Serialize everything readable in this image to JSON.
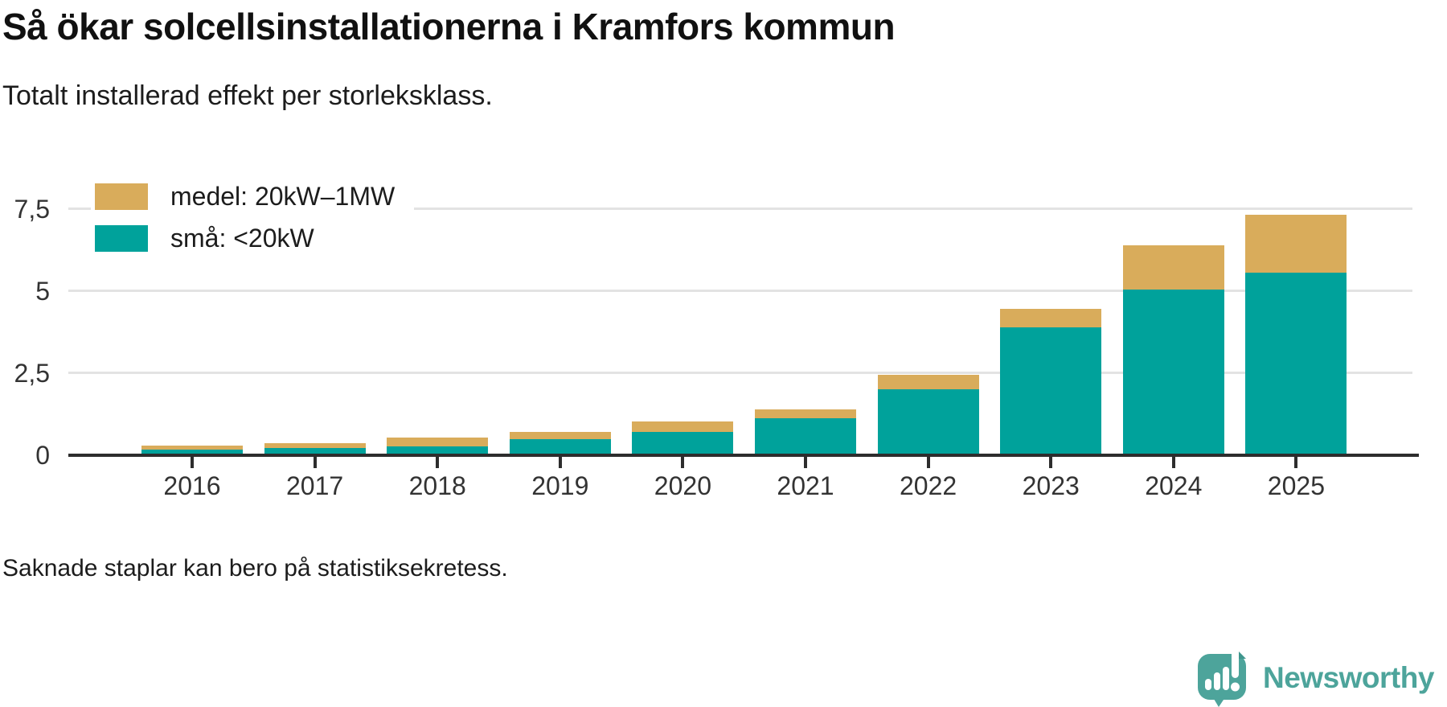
{
  "header": {
    "title": "Så ökar solcellsinstallationerna i Kramfors kommun",
    "subtitle": "Totalt installerad effekt per storleksklass."
  },
  "footer": {
    "note": "Saknade staplar kan bero på statistiksekretess."
  },
  "branding": {
    "name": "Newsworthy",
    "color": "#4da49b",
    "logo_icon": "speech-bubble-bar-chart-exclamation",
    "logo_shadow_color": "#3f968d"
  },
  "colors": {
    "medel": "#d9ac5b",
    "sma": "#00a29b",
    "axis": "#2d2d2d",
    "grid": "#e3e3e3",
    "text": "#1c1c1c"
  },
  "chart_data": {
    "type": "bar",
    "stacked": true,
    "title": "Så ökar solcellsinstallationerna i Kramfors kommun",
    "subtitle": "Totalt installerad effekt per storleksklass.",
    "categories": [
      "2016",
      "2017",
      "2018",
      "2019",
      "2020",
      "2021",
      "2022",
      "2023",
      "2024",
      "2025"
    ],
    "series": [
      {
        "name": "medel: 20kW–1MW",
        "color": "#d9ac5b",
        "values": [
          0.13,
          0.14,
          0.26,
          0.23,
          0.33,
          0.27,
          0.43,
          0.58,
          1.35,
          1.76
        ]
      },
      {
        "name": "små: <20kW",
        "color": "#00a29b",
        "values": [
          0.17,
          0.23,
          0.27,
          0.48,
          0.71,
          1.13,
          2.01,
          3.89,
          5.04,
          5.56
        ]
      }
    ],
    "totals": [
      0.3,
      0.37,
      0.53,
      0.71,
      1.04,
      1.4,
      2.44,
      4.47,
      6.39,
      7.32
    ],
    "xlabel": "",
    "ylabel": "",
    "ylim": [
      0,
      7.5
    ],
    "yticks": [
      0,
      2.5,
      5,
      7.5
    ],
    "ytick_labels": [
      "0",
      "2,5",
      "5",
      "7,5"
    ],
    "grid": true,
    "legend_position": "top-left"
  }
}
